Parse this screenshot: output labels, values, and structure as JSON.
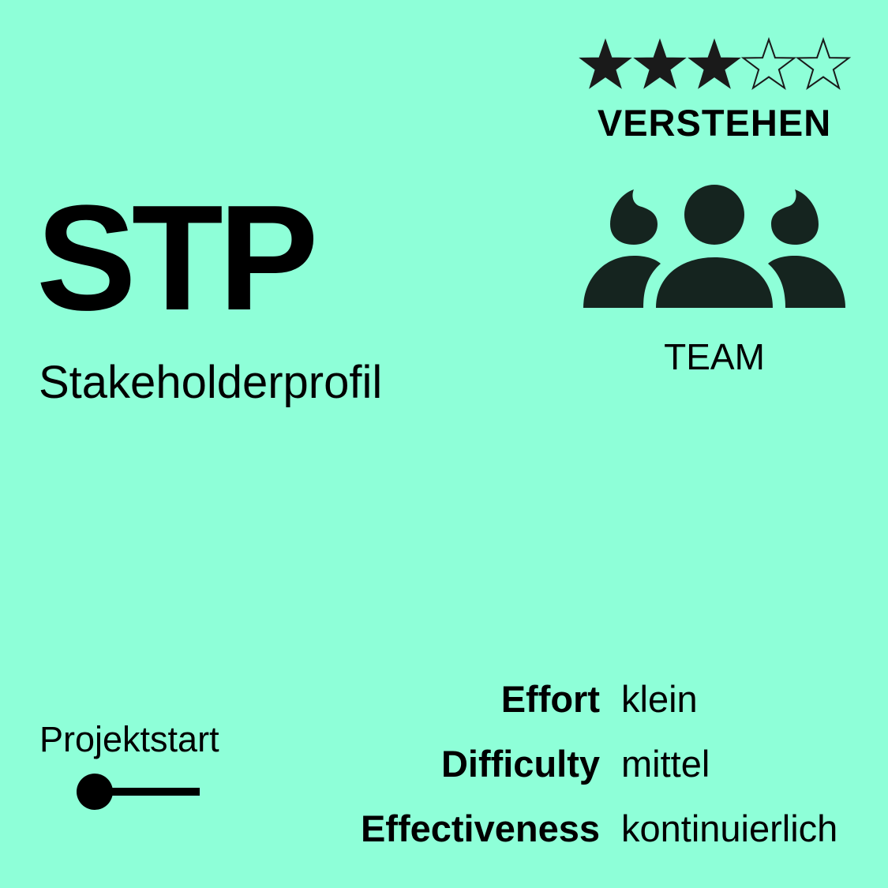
{
  "card": {
    "background": "#8effd8",
    "code": "STP",
    "subtitle": "Stakeholderprofil",
    "rating": {
      "filled": 3,
      "total": 5,
      "icon": "star-icon"
    },
    "level": "VERSTEHEN",
    "audience": {
      "icon": "team-icon",
      "label": "TEAM",
      "color": "#15241f"
    },
    "phase": {
      "label": "Projektstart",
      "icon": "timeline-start-icon"
    },
    "metrics": [
      {
        "name": "Effort",
        "value": "klein"
      },
      {
        "name": "Difficulty",
        "value": "mittel"
      },
      {
        "name": "Effectiveness",
        "value": "kontinuierlich"
      }
    ]
  }
}
